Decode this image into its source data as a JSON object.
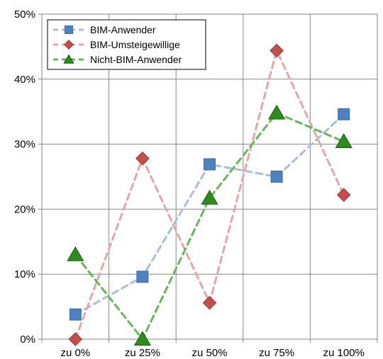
{
  "chart_data": {
    "type": "line",
    "title": "",
    "xlabel": "",
    "ylabel": "",
    "categories": [
      "zu 0%",
      "zu 25%",
      "zu 50%",
      "zu 75%",
      "zu 100%"
    ],
    "ylim": [
      0,
      50
    ],
    "yticks": [
      0,
      10,
      20,
      30,
      40,
      50
    ],
    "ytick_labels": [
      "0%",
      "10%",
      "20%",
      "30%",
      "40%",
      "50%"
    ],
    "grid": {
      "horizontal": true,
      "vertical": true
    },
    "legend": "top-left",
    "series": [
      {
        "name": "BIM-Anwender",
        "values": [
          3.8,
          9.6,
          26.9,
          25.0,
          34.6
        ],
        "line_color": "#a9bfdc",
        "marker_color": "#4f81bd",
        "marker": "square"
      },
      {
        "name": "BIM-Umsteigewillige",
        "values": [
          0.0,
          27.8,
          5.6,
          44.4,
          22.2
        ],
        "line_color": "#e3a8a6",
        "marker_color": "#c0504d",
        "marker": "diamond"
      },
      {
        "name": "Nicht-BIM-Anwender",
        "values": [
          13.0,
          0.0,
          21.7,
          34.8,
          30.4
        ],
        "line_color": "#66b85a",
        "marker_color": "#2e8b1e",
        "marker": "triangle"
      }
    ]
  }
}
